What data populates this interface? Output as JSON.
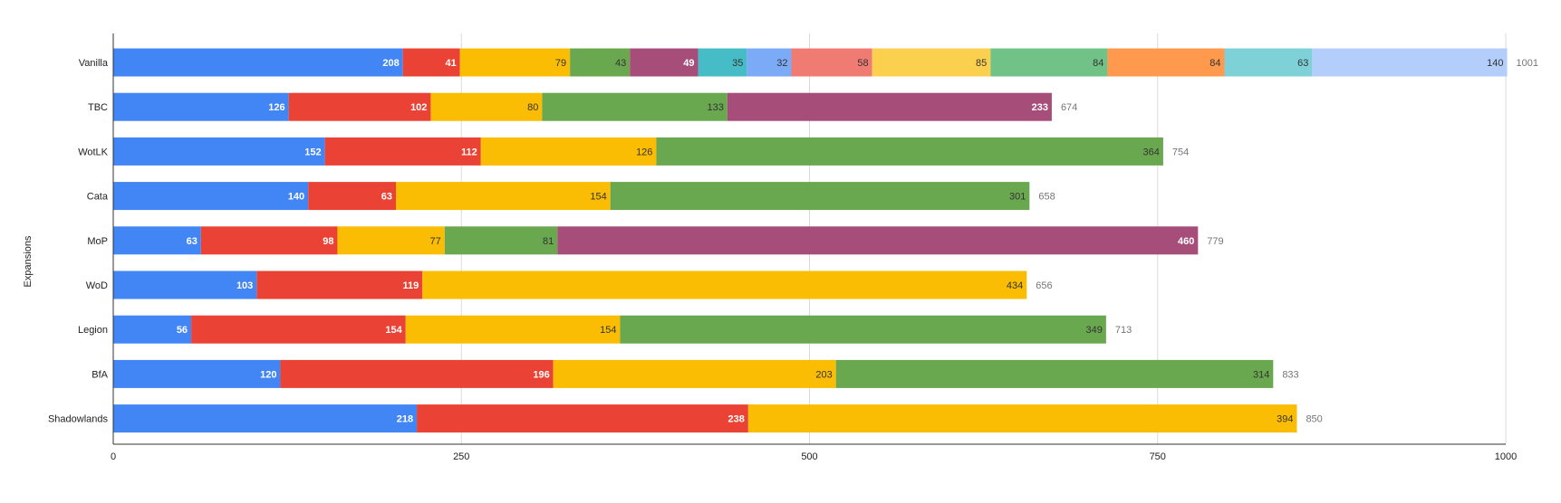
{
  "chart_data": {
    "type": "bar",
    "orientation": "horizontal",
    "stacked": true,
    "title": "",
    "xlabel": "",
    "ylabel": "Expansions",
    "xlim": [
      0,
      1000
    ],
    "xticks": [
      0,
      250,
      500,
      750,
      1000
    ],
    "grid": true,
    "legend": "none",
    "categories": [
      "Vanilla",
      "TBC",
      "WotLK",
      "Cata",
      "MoP",
      "WoD",
      "Legion",
      "BfA",
      "Shadowlands"
    ],
    "segment_colors": [
      "#4285f4",
      "#ea4335",
      "#fbbc04",
      "#6aa84f",
      "#a64d79",
      "#46bdc6",
      "#7baaf7",
      "#f07b72",
      "#fcd04f",
      "#71c287",
      "#ff994d",
      "#7ed1d7",
      "#b3cefb"
    ],
    "segment_label_colors": [
      "#ffffff",
      "#ffffff",
      "#333333",
      "#333333",
      "#ffffff",
      "#333333",
      "#333333",
      "#333333",
      "#333333",
      "#333333",
      "#333333",
      "#333333",
      "#333333"
    ],
    "stacks": [
      {
        "category": "Vanilla",
        "values": [
          208,
          41,
          79,
          43,
          49,
          35,
          32,
          58,
          85,
          84,
          84,
          63,
          140
        ],
        "total": 1001
      },
      {
        "category": "TBC",
        "values": [
          126,
          102,
          80,
          133,
          233
        ],
        "total": 674
      },
      {
        "category": "WotLK",
        "values": [
          152,
          112,
          126,
          364
        ],
        "total": 754
      },
      {
        "category": "Cata",
        "values": [
          140,
          63,
          154,
          301
        ],
        "total": 658
      },
      {
        "category": "MoP",
        "values": [
          63,
          98,
          77,
          81,
          460
        ],
        "total": 779
      },
      {
        "category": "WoD",
        "values": [
          103,
          119,
          434
        ],
        "total": 656
      },
      {
        "category": "Legion",
        "values": [
          56,
          154,
          154,
          349
        ],
        "total": 713
      },
      {
        "category": "BfA",
        "values": [
          120,
          196,
          203,
          314
        ],
        "total": 833
      },
      {
        "category": "Shadowlands",
        "values": [
          218,
          238,
          394
        ],
        "total": 850
      }
    ]
  }
}
